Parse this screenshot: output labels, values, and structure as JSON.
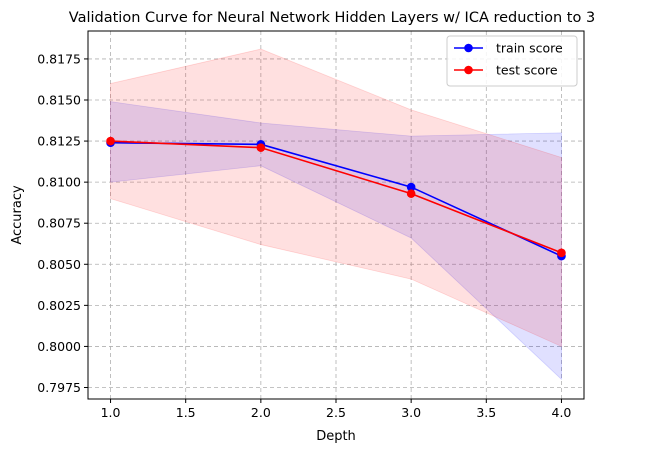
{
  "chart_data": {
    "type": "line",
    "title": "Validation Curve for Neural Network Hidden Layers w/ ICA reduction to 3",
    "xlabel": "Depth",
    "ylabel": "Accuracy",
    "x": [
      1.0,
      2.0,
      3.0,
      4.0
    ],
    "xlim": [
      0.85,
      4.15
    ],
    "ylim": [
      0.7968,
      0.8192
    ],
    "xticks": [
      1.0,
      1.5,
      2.0,
      2.5,
      3.0,
      3.5,
      4.0
    ],
    "xtick_labels": [
      "1.0",
      "1.5",
      "2.0",
      "2.5",
      "3.0",
      "3.5",
      "4.0"
    ],
    "yticks": [
      0.7975,
      0.8,
      0.8025,
      0.805,
      0.8075,
      0.81,
      0.8125,
      0.815,
      0.8175
    ],
    "ytick_labels": [
      "0.7975",
      "0.8000",
      "0.8025",
      "0.8050",
      "0.8075",
      "0.8100",
      "0.8125",
      "0.8150",
      "0.8175"
    ],
    "grid": true,
    "legend_position": "top-right",
    "series": [
      {
        "name": "train score",
        "color": "#0000ff",
        "values": [
          0.8124,
          0.8123,
          0.8097,
          0.8055
        ],
        "band_upper": [
          0.8149,
          0.8136,
          0.8128,
          0.813
        ],
        "band_lower": [
          0.81,
          0.811,
          0.8066,
          0.798
        ]
      },
      {
        "name": "test score",
        "color": "#ff0000",
        "values": [
          0.8125,
          0.8121,
          0.8093,
          0.8057
        ],
        "band_upper": [
          0.816,
          0.8181,
          0.8144,
          0.8115
        ],
        "band_lower": [
          0.809,
          0.8062,
          0.8041,
          0.8
        ]
      }
    ]
  }
}
